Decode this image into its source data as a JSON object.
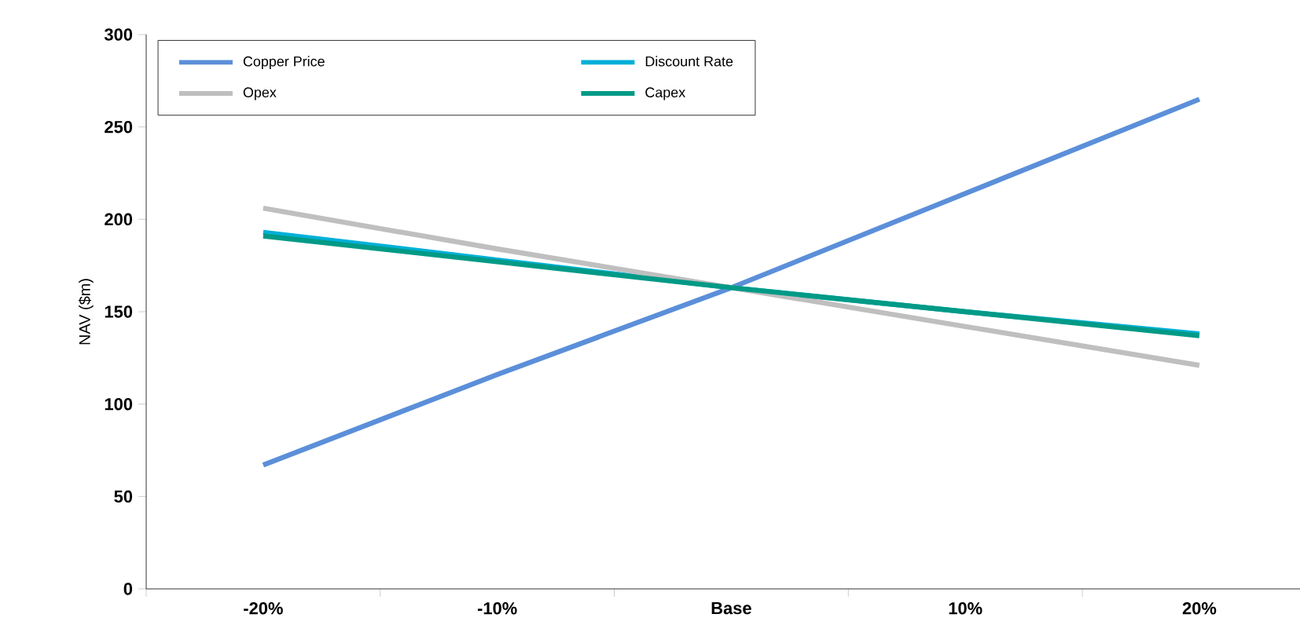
{
  "chart_data": {
    "type": "line",
    "ylabel": "NAV ($m)",
    "categories": [
      "-20%",
      "-10%",
      "Base",
      "10%",
      "20%"
    ],
    "ylim": [
      0,
      300
    ],
    "yticks": [
      0,
      50,
      100,
      150,
      200,
      250,
      300
    ],
    "grid": false,
    "legend": "top left",
    "marker": "none",
    "line_style": "solid",
    "series": [
      {
        "name": "Copper Price",
        "color": "#5b8fd9",
        "values": [
          67,
          116,
          163,
          214,
          265
        ]
      },
      {
        "name": "Discount Rate",
        "color": "#00b0d8",
        "values": [
          193,
          178,
          163,
          150,
          138
        ]
      },
      {
        "name": "Opex",
        "color": "#bfbfbf",
        "values": [
          206,
          184,
          163,
          142,
          121
        ]
      },
      {
        "name": "Capex",
        "color": "#009a86",
        "values": [
          191,
          177,
          163,
          150,
          137
        ]
      }
    ]
  }
}
